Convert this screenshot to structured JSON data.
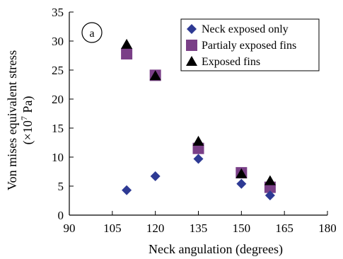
{
  "chart_data": {
    "type": "scatter",
    "panel_label": "a",
    "xlabel": "Neck angulation (degrees)",
    "ylabel_line1": "Von mises equivalent stress",
    "ylabel_line2_prefix": "(×10",
    "ylabel_line2_exp": "7",
    "ylabel_line2_suffix": " Pa)",
    "xlim": [
      90,
      180
    ],
    "ylim": [
      0,
      35
    ],
    "xticks": [
      90,
      105,
      120,
      135,
      150,
      165,
      180
    ],
    "yticks": [
      0,
      5,
      10,
      15,
      20,
      25,
      30,
      35
    ],
    "grid": false,
    "legend_position": "top-right",
    "series": [
      {
        "name": "Neck exposed only",
        "marker": "diamond",
        "color": "#2e3a94",
        "x": [
          110,
          120,
          135,
          150,
          160
        ],
        "y": [
          4.3,
          6.7,
          9.7,
          5.4,
          3.4
        ]
      },
      {
        "name": "Partialy exposed fins",
        "marker": "square",
        "color": "#7a3f87",
        "x": [
          110,
          120,
          135,
          150,
          160
        ],
        "y": [
          27.8,
          24.1,
          11.5,
          7.3,
          4.8
        ]
      },
      {
        "name": "Exposed fins",
        "marker": "triangle",
        "color": "#000000",
        "x": [
          110,
          120,
          135,
          150,
          160
        ],
        "y": [
          29.4,
          24.0,
          12.7,
          7.1,
          5.9
        ]
      }
    ]
  }
}
